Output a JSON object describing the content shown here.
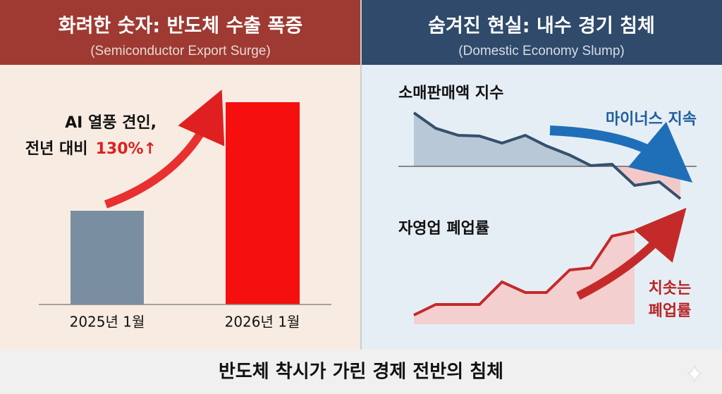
{
  "left": {
    "title": "화려한 숫자: 반도체 수출 폭증",
    "subtitle": "(Semiconductor Export Surge)",
    "annotation_line1": "AI 열풍 견인,",
    "annotation_line2": "전년 대비",
    "annotation_highlight": "130%↑",
    "categories": [
      "2025년 1월",
      "2026년 1월"
    ]
  },
  "right": {
    "title": "숨겨진 현실: 내수 경기 침체",
    "subtitle": "(Domestic Economy Slump)",
    "top": {
      "label": "소매판매액 지수",
      "annotation": "마이너스 지속"
    },
    "bottom": {
      "label": "자영업 폐업률",
      "annotation_line1": "치솟는",
      "annotation_line2": "폐업률"
    }
  },
  "footer": "반도체 착시가 가린 경제 전반의 침체"
}
